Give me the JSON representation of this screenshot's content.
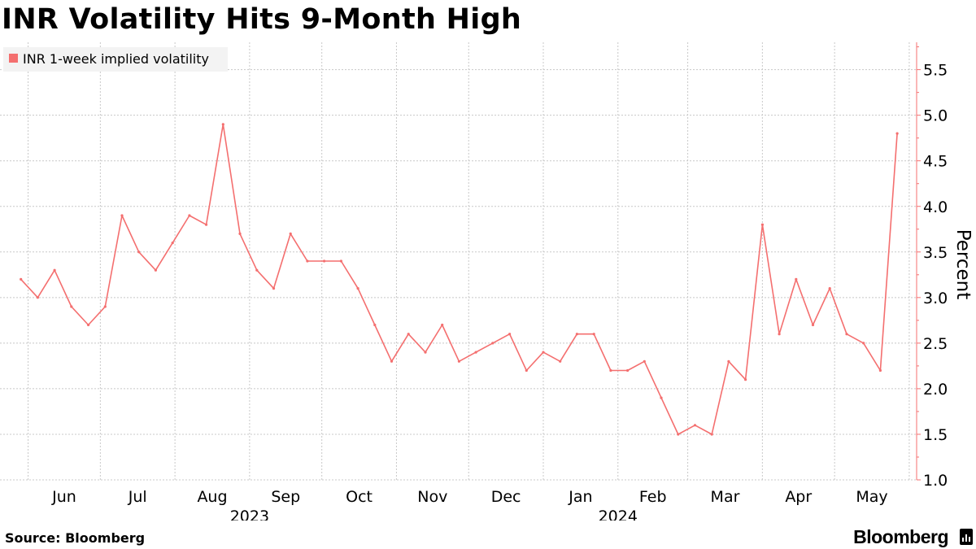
{
  "title": "INR Volatility Hits 9-Month High",
  "footer": {
    "source": "Source: Bloomberg",
    "brand": "Bloomberg"
  },
  "colors": {
    "series": "#f46f6f",
    "grid": "#c8c8c8",
    "text": "#000000",
    "background": "#ffffff"
  },
  "chart_data": {
    "type": "line",
    "title": "",
    "xlabel": "",
    "ylabel": "Percent",
    "ylim": [
      1.0,
      5.8
    ],
    "yticks": [
      1.0,
      1.5,
      2.0,
      2.5,
      3.0,
      3.5,
      4.0,
      4.5,
      5.0,
      5.5
    ],
    "grid": true,
    "legend_position": "top-left",
    "y_axis_position": "right",
    "months": [
      {
        "label": "Jun",
        "year": ""
      },
      {
        "label": "Jul",
        "year": ""
      },
      {
        "label": "Aug",
        "year": ""
      },
      {
        "label": "Sep",
        "year": "2023"
      },
      {
        "label": "Oct",
        "year": ""
      },
      {
        "label": "Nov",
        "year": ""
      },
      {
        "label": "Dec",
        "year": ""
      },
      {
        "label": "Jan",
        "year": ""
      },
      {
        "label": "Feb",
        "year": "2024"
      },
      {
        "label": "Mar",
        "year": ""
      },
      {
        "label": "Apr",
        "year": ""
      },
      {
        "label": "May",
        "year": ""
      }
    ],
    "series": [
      {
        "name": "INR 1-week implied volatility",
        "x": [
          "2023-05-29",
          "2023-06-05",
          "2023-06-12",
          "2023-06-19",
          "2023-06-26",
          "2023-07-03",
          "2023-07-10",
          "2023-07-17",
          "2023-07-24",
          "2023-07-31",
          "2023-08-07",
          "2023-08-14",
          "2023-08-21",
          "2023-08-28",
          "2023-09-04",
          "2023-09-11",
          "2023-09-18",
          "2023-09-25",
          "2023-10-02",
          "2023-10-09",
          "2023-10-16",
          "2023-10-23",
          "2023-10-30",
          "2023-11-06",
          "2023-11-13",
          "2023-11-20",
          "2023-11-27",
          "2023-12-04",
          "2023-12-11",
          "2023-12-18",
          "2023-12-25",
          "2024-01-01",
          "2024-01-08",
          "2024-01-15",
          "2024-01-22",
          "2024-01-29",
          "2024-02-05",
          "2024-02-12",
          "2024-02-19",
          "2024-02-26",
          "2024-03-04",
          "2024-03-11",
          "2024-03-18",
          "2024-03-25",
          "2024-04-01",
          "2024-04-08",
          "2024-04-15",
          "2024-04-22",
          "2024-04-29",
          "2024-05-06",
          "2024-05-13",
          "2024-05-20",
          "2024-05-27"
        ],
        "y": [
          3.2,
          3.0,
          3.3,
          2.9,
          2.7,
          2.9,
          3.9,
          3.5,
          3.3,
          3.6,
          3.9,
          3.8,
          4.9,
          3.7,
          3.3,
          3.1,
          3.7,
          3.4,
          3.4,
          3.4,
          3.1,
          2.7,
          2.3,
          2.6,
          2.4,
          2.7,
          2.3,
          2.4,
          2.5,
          2.6,
          2.2,
          2.4,
          2.3,
          2.6,
          2.6,
          2.2,
          2.2,
          2.3,
          1.9,
          1.5,
          1.6,
          1.5,
          2.3,
          2.1,
          3.8,
          2.6,
          3.2,
          2.7,
          3.1,
          2.6,
          2.5,
          2.2,
          4.8
        ]
      }
    ]
  }
}
